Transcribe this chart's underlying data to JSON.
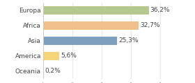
{
  "categories": [
    "Europa",
    "Africa",
    "Asia",
    "America",
    "Oceania"
  ],
  "values": [
    36.2,
    32.7,
    25.3,
    5.6,
    0.2
  ],
  "labels": [
    "36,2%",
    "32,7%",
    "25,3%",
    "5,6%",
    "0,2%"
  ],
  "bar_colors": [
    "#b5c98e",
    "#f0bf8a",
    "#7f9fbf",
    "#f5d47a",
    "#e8a0a0"
  ],
  "xlim": [
    0,
    44
  ],
  "background_color": "#ffffff",
  "label_fontsize": 6.5,
  "tick_fontsize": 6.5,
  "bar_height": 0.55
}
